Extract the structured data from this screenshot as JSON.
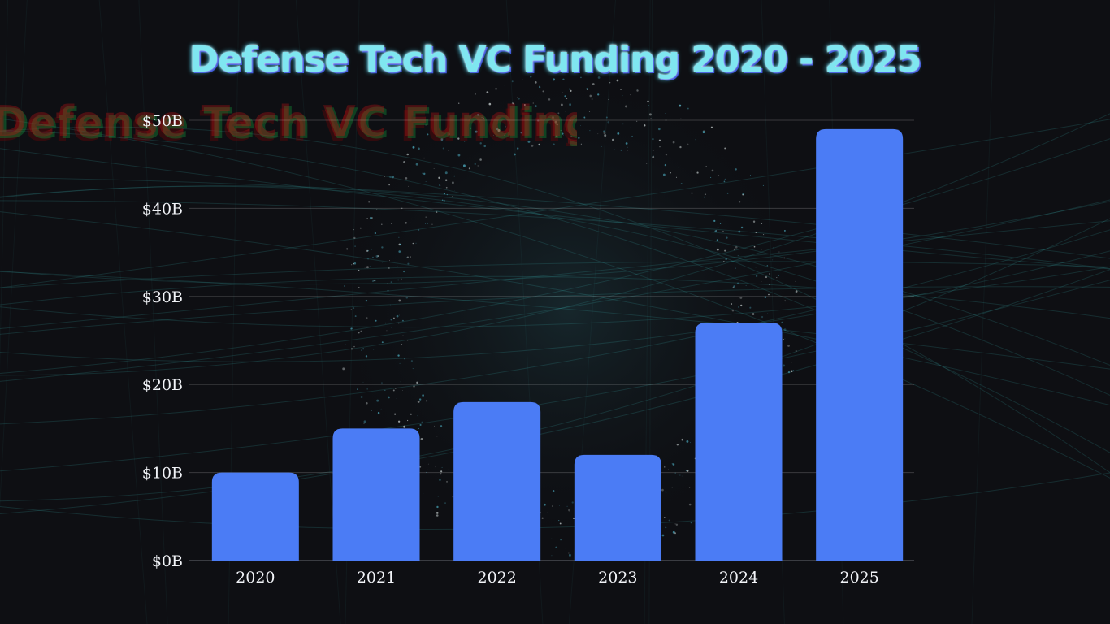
{
  "chart_data": {
    "type": "bar",
    "title": "Defense Tech VC Funding 2020 - 2025",
    "xlabel": "",
    "ylabel": "",
    "categories": [
      "2020",
      "2021",
      "2022",
      "2023",
      "2024",
      "2025"
    ],
    "values": [
      10,
      15,
      18,
      12,
      27,
      49
    ],
    "unit": "B",
    "ylim": [
      0,
      50
    ],
    "yticks": [
      "$0B",
      "$10B",
      "$20B",
      "$30B",
      "$40B",
      "$50B"
    ],
    "grid": true,
    "legend": "none",
    "bar_color": "#4b7cf5",
    "title_color": "#7fe6f0"
  }
}
